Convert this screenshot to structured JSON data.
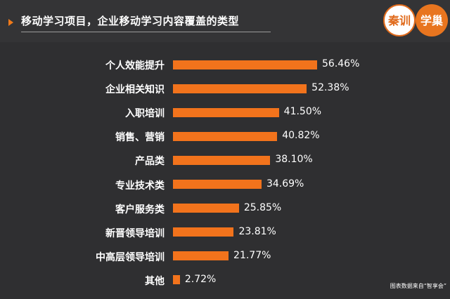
{
  "header": {
    "title": "移动学习项目，企业移动学习内容覆盖的类型"
  },
  "logo": {
    "left_text": "秦训",
    "right_text": "学巢"
  },
  "chart_data": {
    "type": "bar",
    "orientation": "horizontal",
    "categories": [
      "个人效能提升",
      "企业相关知识",
      "入职培训",
      "销售、营销",
      "产品类",
      "专业技术类",
      "客户服务类",
      "新晋领导培训",
      "中高层领导培训",
      "其他"
    ],
    "values": [
      56.46,
      52.38,
      41.5,
      40.82,
      38.1,
      34.69,
      25.85,
      23.81,
      21.77,
      2.72
    ],
    "value_labels": [
      "56.46%",
      "52.38%",
      "41.50%",
      "40.82%",
      "38.10%",
      "34.69%",
      "25.85%",
      "23.81%",
      "21.77%",
      "2.72%"
    ],
    "bar_color": "#f2731c",
    "grid": false
  },
  "source_note": "图表数据来自“智享会”"
}
